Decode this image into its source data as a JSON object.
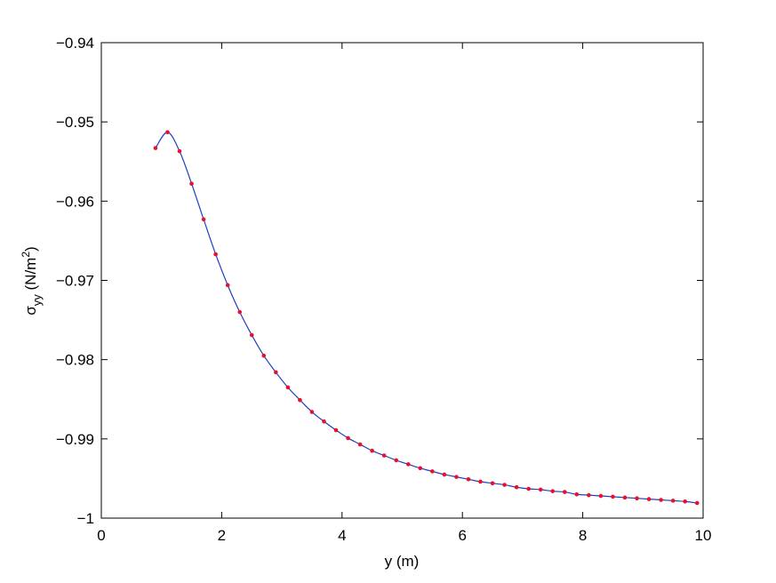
{
  "chart_data": {
    "type": "line",
    "xlabel": "y (m)",
    "ylabel": {
      "symbol": "σ",
      "sub": "yy",
      "unit": " (N/m",
      "sup": "2",
      "close": ")"
    },
    "x": [
      0.9,
      1.1,
      1.3,
      1.5,
      1.7,
      1.9,
      2.1,
      2.3,
      2.5,
      2.7,
      2.9,
      3.1,
      3.3,
      3.5,
      3.7,
      3.9,
      4.1,
      4.3,
      4.5,
      4.7,
      4.9,
      5.1,
      5.3,
      5.5,
      5.7,
      5.9,
      6.1,
      6.3,
      6.5,
      6.7,
      6.9,
      7.1,
      7.3,
      7.5,
      7.7,
      7.9,
      8.1,
      8.3,
      8.5,
      8.7,
      8.9,
      9.1,
      9.3,
      9.5,
      9.7,
      9.9
    ],
    "series": [
      {
        "color": "#1f3fbf",
        "marker_color": "#e8102a",
        "values": [
          -0.9533,
          -0.9513,
          -0.9537,
          -0.9578,
          -0.9623,
          -0.9667,
          -0.9706,
          -0.974,
          -0.9769,
          -0.9795,
          -0.9816,
          -0.9835,
          -0.9851,
          -0.9866,
          -0.9878,
          -0.9889,
          -0.9899,
          -0.9907,
          -0.9915,
          -0.9921,
          -0.9927,
          -0.9932,
          -0.9937,
          -0.9941,
          -0.9945,
          -0.9948,
          -0.9951,
          -0.9954,
          -0.9956,
          -0.9958,
          -0.9961,
          -0.9963,
          -0.9964,
          -0.9966,
          -0.9967,
          -0.997,
          -0.9971,
          -0.9972,
          -0.9973,
          -0.9974,
          -0.9975,
          -0.9976,
          -0.9977,
          -0.9978,
          -0.9979,
          -0.9981
        ]
      }
    ],
    "xlim": [
      0,
      10
    ],
    "xticks": [
      0,
      2,
      4,
      6,
      8,
      10
    ],
    "ylim": [
      -1,
      -0.94
    ],
    "yticks": [
      {
        "value": -1,
        "label": "−1"
      },
      {
        "value": -0.99,
        "label": "−0.99"
      },
      {
        "value": -0.98,
        "label": "−0.98"
      },
      {
        "value": -0.97,
        "label": "−0.97"
      },
      {
        "value": -0.96,
        "label": "−0.96"
      },
      {
        "value": -0.95,
        "label": "−0.95"
      },
      {
        "value": -0.94,
        "label": "−0.94"
      }
    ],
    "grid": false
  }
}
